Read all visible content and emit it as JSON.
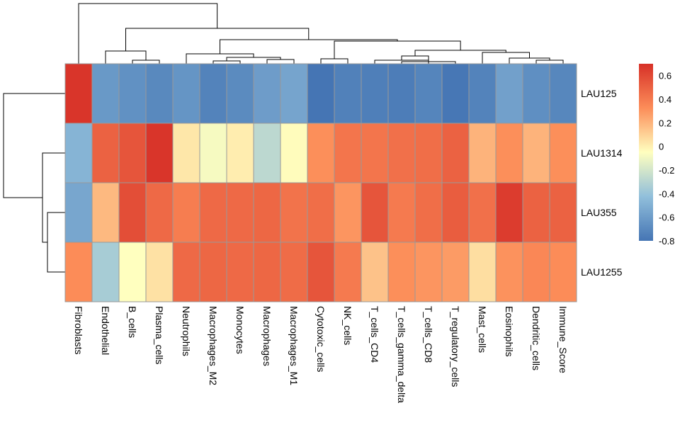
{
  "chart_data": {
    "type": "heatmap",
    "title": "",
    "columns": [
      "Fibroblasts",
      "Endothelial",
      "B_cells",
      "Plasma_cells",
      "Neutrophils",
      "Macrophages_M2",
      "Monocytes",
      "Macrophages",
      "Macrophages_M1",
      "Cytotoxic_cells",
      "NK_cells",
      "T_cells_CD4",
      "T_cells_gamma_delta",
      "T_cells_CD8",
      "T_regulatory_cells",
      "Mast_cells",
      "Eosinophils",
      "Dendritic_cells",
      "Immune_Score"
    ],
    "rows": [
      "LAU125",
      "LAU1314",
      "LAU355",
      "LAU1255"
    ],
    "values": [
      [
        0.68,
        -0.62,
        -0.66,
        -0.7,
        -0.64,
        -0.73,
        -0.69,
        -0.6,
        -0.56,
        -0.8,
        -0.74,
        -0.75,
        -0.76,
        -0.72,
        -0.79,
        -0.73,
        -0.58,
        -0.67,
        -0.71
      ],
      [
        -0.48,
        0.5,
        0.55,
        0.68,
        0.03,
        -0.08,
        0.01,
        -0.28,
        -0.04,
        0.32,
        0.42,
        0.42,
        0.44,
        0.45,
        0.5,
        0.2,
        0.32,
        0.2,
        0.32
      ],
      [
        -0.55,
        0.18,
        0.58,
        0.47,
        0.39,
        0.47,
        0.47,
        0.48,
        0.43,
        0.45,
        0.3,
        0.55,
        0.4,
        0.45,
        0.52,
        0.44,
        0.65,
        0.5,
        0.5
      ],
      [
        0.33,
        -0.35,
        -0.05,
        0.05,
        0.47,
        0.48,
        0.47,
        0.48,
        0.46,
        0.55,
        0.4,
        0.15,
        0.32,
        0.3,
        0.28,
        0.06,
        0.31,
        0.35,
        0.33
      ]
    ],
    "color_scale": {
      "min": -0.8,
      "max": 0.7,
      "colors": [
        "#4575b4",
        "#91bfdb",
        "#ffffbf",
        "#fc8d59",
        "#d73027"
      ],
      "ticks": [
        "0.6",
        "0.4",
        "0.2",
        "0",
        "-0.2",
        "-0.4",
        "-0.6",
        "-0.8"
      ],
      "tick_values": [
        0.6,
        0.4,
        0.2,
        0,
        -0.2,
        -0.4,
        -0.6,
        -0.8
      ]
    },
    "cell_border_color": "#999999",
    "dendrogram_color": "#000000"
  }
}
